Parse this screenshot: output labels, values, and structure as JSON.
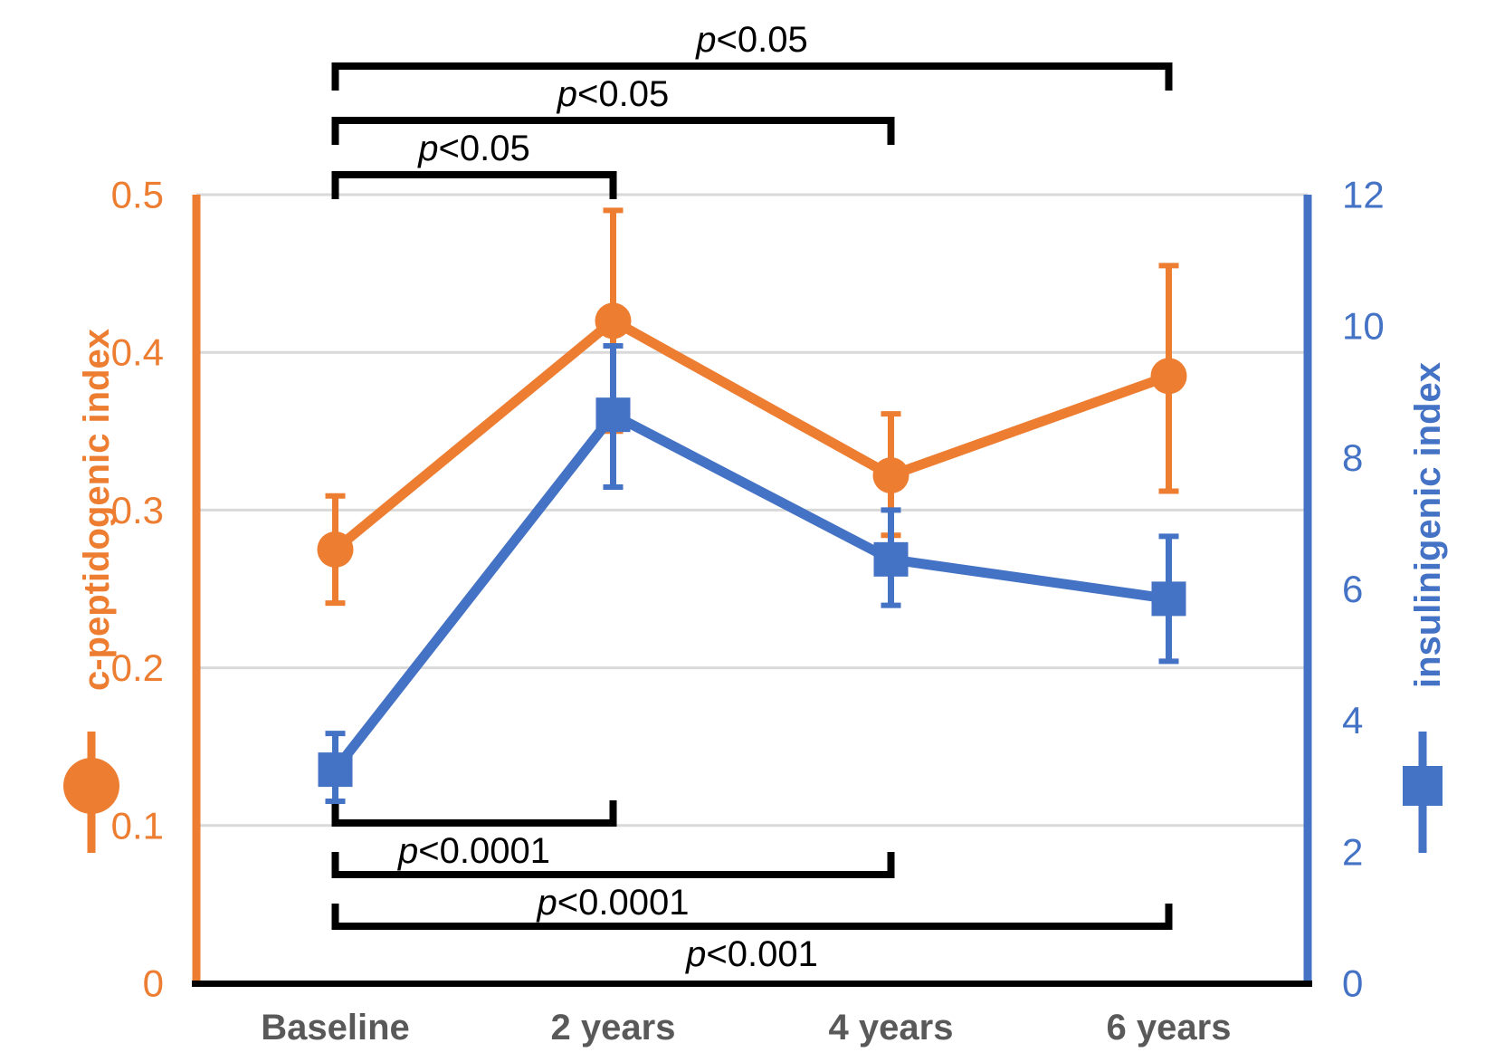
{
  "figure": {
    "background": "#FFFFFF"
  },
  "chart_data": {
    "type": "line",
    "title": "",
    "categories": [
      "Baseline",
      "2 years",
      "4 years",
      "6 years"
    ],
    "x_tick_color": "#595959",
    "grid": {
      "on": true,
      "color": "#D9D9D9"
    },
    "axis_line_color": "#000000",
    "left_axis": {
      "title": "c-peptidogenic index",
      "color": "#ED7D31",
      "min": 0,
      "max": 0.5,
      "tick_labels": [
        "0",
        "0.1",
        "0.2",
        "0.3",
        "0.4",
        "0.5"
      ],
      "tick_values": [
        0,
        0.1,
        0.2,
        0.3,
        0.4,
        0.5
      ]
    },
    "right_axis": {
      "title": "insulinigenic index",
      "color": "#4472C4",
      "min": 0,
      "max": 12,
      "tick_labels": [
        "0",
        "2",
        "4",
        "6",
        "8",
        "10",
        "12"
      ],
      "tick_values": [
        0,
        2,
        4,
        6,
        8,
        10,
        12
      ]
    },
    "series": [
      {
        "name": "c-peptidogenic index",
        "axis": "left",
        "color": "#ED7D31",
        "marker": "circle",
        "values": [
          0.275,
          0.42,
          0.322,
          0.385
        ],
        "error_low": [
          0.241,
          0.35,
          0.284,
          0.312
        ],
        "error_high": [
          0.309,
          0.49,
          0.361,
          0.455
        ]
      },
      {
        "name": "insulinigenic index",
        "axis": "right",
        "color": "#4472C4",
        "marker": "square",
        "values": [
          3.25,
          8.65,
          6.45,
          5.85
        ],
        "error_low": [
          2.77,
          7.55,
          5.75,
          4.9
        ],
        "error_high": [
          3.8,
          9.7,
          7.2,
          6.8
        ]
      }
    ],
    "significance_brackets": {
      "color": "#000000",
      "top": [
        {
          "label": "p<0.05",
          "from": "Baseline",
          "to": "6 years"
        },
        {
          "label": "p<0.05",
          "from": "Baseline",
          "to": "4 years"
        },
        {
          "label": "p<0.05",
          "from": "Baseline",
          "to": "2 years"
        }
      ],
      "bottom": [
        {
          "label": "p<0.0001",
          "from": "Baseline",
          "to": "2 years"
        },
        {
          "label": "p<0.0001",
          "from": "Baseline",
          "to": "4 years"
        },
        {
          "label": "p<0.001",
          "from": "Baseline",
          "to": "6 years"
        }
      ]
    }
  }
}
